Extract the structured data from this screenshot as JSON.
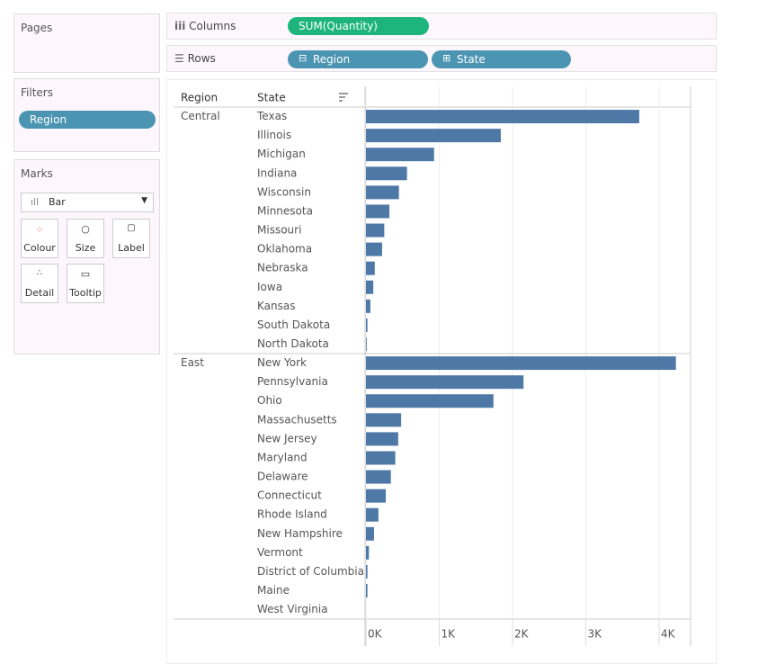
{
  "ui": {
    "pages": {
      "title": "Pages"
    },
    "filters": {
      "title": "Filters",
      "pills": [
        "Region"
      ]
    },
    "marks": {
      "title": "Marks",
      "mark_type": "Bar",
      "cards": [
        "Colour",
        "Size",
        "Label",
        "Detail",
        "Tooltip"
      ]
    },
    "shelves": {
      "columns": {
        "label": "Columns",
        "pills": [
          "SUM(Quantity)"
        ]
      },
      "rows": {
        "label": "Rows",
        "pills": [
          "Region",
          "State"
        ]
      }
    },
    "header": {
      "region": "Region",
      "state": "State"
    }
  },
  "chart_data": {
    "type": "bar",
    "orientation": "horizontal",
    "color": "#4e79a7",
    "groups": [
      {
        "name": "Central",
        "categories": [
          "Texas",
          "Illinois",
          "Michigan",
          "Indiana",
          "Wisconsin",
          "Minnesota",
          "Missouri",
          "Oklahoma",
          "Nebraska",
          "Iowa",
          "Kansas",
          "South Dakota",
          "North Dakota"
        ],
        "values": [
          3730,
          1840,
          930,
          560,
          450,
          320,
          250,
          220,
          120,
          100,
          60,
          20,
          10
        ]
      },
      {
        "name": "East",
        "categories": [
          "New York",
          "Pennsylvania",
          "Ohio",
          "Massachusetts",
          "New Jersey",
          "Maryland",
          "Delaware",
          "Connecticut",
          "Rhode Island",
          "New Hampshire",
          "Vermont",
          "District of Columbia",
          "Maine",
          "West Virginia"
        ],
        "values": [
          4230,
          2150,
          1740,
          480,
          440,
          400,
          340,
          270,
          170,
          110,
          40,
          20,
          20,
          0
        ]
      }
    ],
    "xlim": [
      0,
      4430
    ],
    "xticks": [
      {
        "value": 0,
        "label": "0K"
      },
      {
        "value": 1000,
        "label": "1K"
      },
      {
        "value": 2000,
        "label": "2K"
      },
      {
        "value": 3000,
        "label": "3K"
      },
      {
        "value": 4000,
        "label": "4K"
      }
    ],
    "grid": true
  }
}
